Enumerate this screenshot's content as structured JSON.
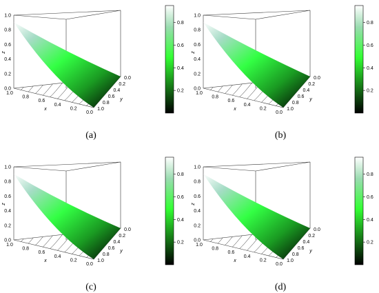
{
  "chart_data": [
    {
      "type": "surface",
      "panel_label": "(a)",
      "axes": {
        "x_label": "x",
        "y_label": "y",
        "z_label": "z"
      },
      "x_ticks": [
        "0.0",
        "0.2",
        "0.4",
        "0.6",
        "0.8",
        "1.0"
      ],
      "y_ticks": [
        "0.0",
        "0.2",
        "0.4",
        "0.6",
        "0.8",
        "1.0"
      ],
      "z_ticks": [
        "0.0",
        "0.2",
        "0.4",
        "0.6",
        "0.8",
        "1.0"
      ],
      "colorbar_ticks": [
        "0.2",
        "0.4",
        "0.6",
        "0.8"
      ],
      "colorbar_range": [
        0.0,
        0.95
      ],
      "domain": "simplex x + y <= 1",
      "surface_points": [
        {
          "x": 1.0,
          "y": 0.0,
          "z": 0.95
        },
        {
          "x": 0.5,
          "y": 0.0,
          "z": 0.4
        },
        {
          "x": 0.0,
          "y": 0.0,
          "z": 0.0
        },
        {
          "x": 0.0,
          "y": 1.0,
          "z": 0.0
        }
      ],
      "contour_count": 10,
      "colormap": [
        "#000000",
        "#1a8a1a",
        "#33ff33",
        "#9adcb0",
        "#ffffff"
      ]
    },
    {
      "type": "surface",
      "panel_label": "(b)",
      "axes": {
        "x_label": "x",
        "y_label": "y",
        "z_label": "z"
      },
      "x_ticks": [
        "0.0",
        "0.2",
        "0.4",
        "0.6",
        "0.8",
        "1.0"
      ],
      "y_ticks": [
        "0.0",
        "0.2",
        "0.4",
        "0.6",
        "0.8",
        "1.0"
      ],
      "z_ticks": [
        "0.0",
        "0.2",
        "0.4",
        "0.6",
        "0.8",
        "1.0"
      ],
      "colorbar_ticks": [
        "0.2",
        "0.4",
        "0.6",
        "0.8"
      ],
      "colorbar_range": [
        0.0,
        0.95
      ],
      "domain": "simplex x + y <= 1",
      "surface_points": [
        {
          "x": 1.0,
          "y": 0.0,
          "z": 0.95
        },
        {
          "x": 0.5,
          "y": 0.0,
          "z": 0.42
        },
        {
          "x": 0.0,
          "y": 0.0,
          "z": 0.0
        },
        {
          "x": 0.0,
          "y": 1.0,
          "z": 0.0
        }
      ],
      "contour_count": 10,
      "colormap": [
        "#000000",
        "#1a8a1a",
        "#33ff33",
        "#9adcb0",
        "#ffffff"
      ]
    },
    {
      "type": "surface",
      "panel_label": "(c)",
      "axes": {
        "x_label": "x",
        "y_label": "y",
        "z_label": "z"
      },
      "x_ticks": [
        "0.0",
        "0.2",
        "0.4",
        "0.6",
        "0.8",
        "1.0"
      ],
      "y_ticks": [
        "0.0",
        "0.2",
        "0.4",
        "0.6",
        "0.8",
        "1.0"
      ],
      "z_ticks": [
        "0.0",
        "0.2",
        "0.4",
        "0.6",
        "0.8",
        "1.0"
      ],
      "colorbar_ticks": [
        "0.2",
        "0.4",
        "0.6",
        "0.8"
      ],
      "colorbar_range": [
        0.0,
        0.95
      ],
      "domain": "simplex x + y <= 1",
      "surface_points": [
        {
          "x": 1.0,
          "y": 0.0,
          "z": 0.95
        },
        {
          "x": 0.5,
          "y": 0.0,
          "z": 0.38
        },
        {
          "x": 0.0,
          "y": 0.0,
          "z": 0.0
        },
        {
          "x": 0.0,
          "y": 1.0,
          "z": 0.0
        }
      ],
      "contour_count": 10,
      "colormap": [
        "#000000",
        "#1a8a1a",
        "#33ff33",
        "#9adcb0",
        "#ffffff"
      ]
    },
    {
      "type": "surface",
      "panel_label": "(d)",
      "axes": {
        "x_label": "x",
        "y_label": "y",
        "z_label": "z"
      },
      "x_ticks": [
        "0.0",
        "0.2",
        "0.4",
        "0.6",
        "0.8",
        "1.0"
      ],
      "y_ticks": [
        "0.0",
        "0.2",
        "0.4",
        "0.6",
        "0.8",
        "1.0"
      ],
      "z_ticks": [
        "0.0",
        "0.2",
        "0.4",
        "0.6",
        "0.8",
        "1.0"
      ],
      "colorbar_ticks": [
        "0.2",
        "0.4",
        "0.6",
        "0.8"
      ],
      "colorbar_range": [
        0.0,
        0.95
      ],
      "domain": "simplex x + y <= 1",
      "surface_points": [
        {
          "x": 1.0,
          "y": 0.0,
          "z": 0.95
        },
        {
          "x": 0.5,
          "y": 0.0,
          "z": 0.4
        },
        {
          "x": 0.0,
          "y": 0.0,
          "z": 0.0
        },
        {
          "x": 0.0,
          "y": 1.0,
          "z": 0.0
        }
      ],
      "contour_count": 10,
      "colormap": [
        "#000000",
        "#1a8a1a",
        "#33ff33",
        "#9adcb0",
        "#ffffff"
      ]
    }
  ]
}
